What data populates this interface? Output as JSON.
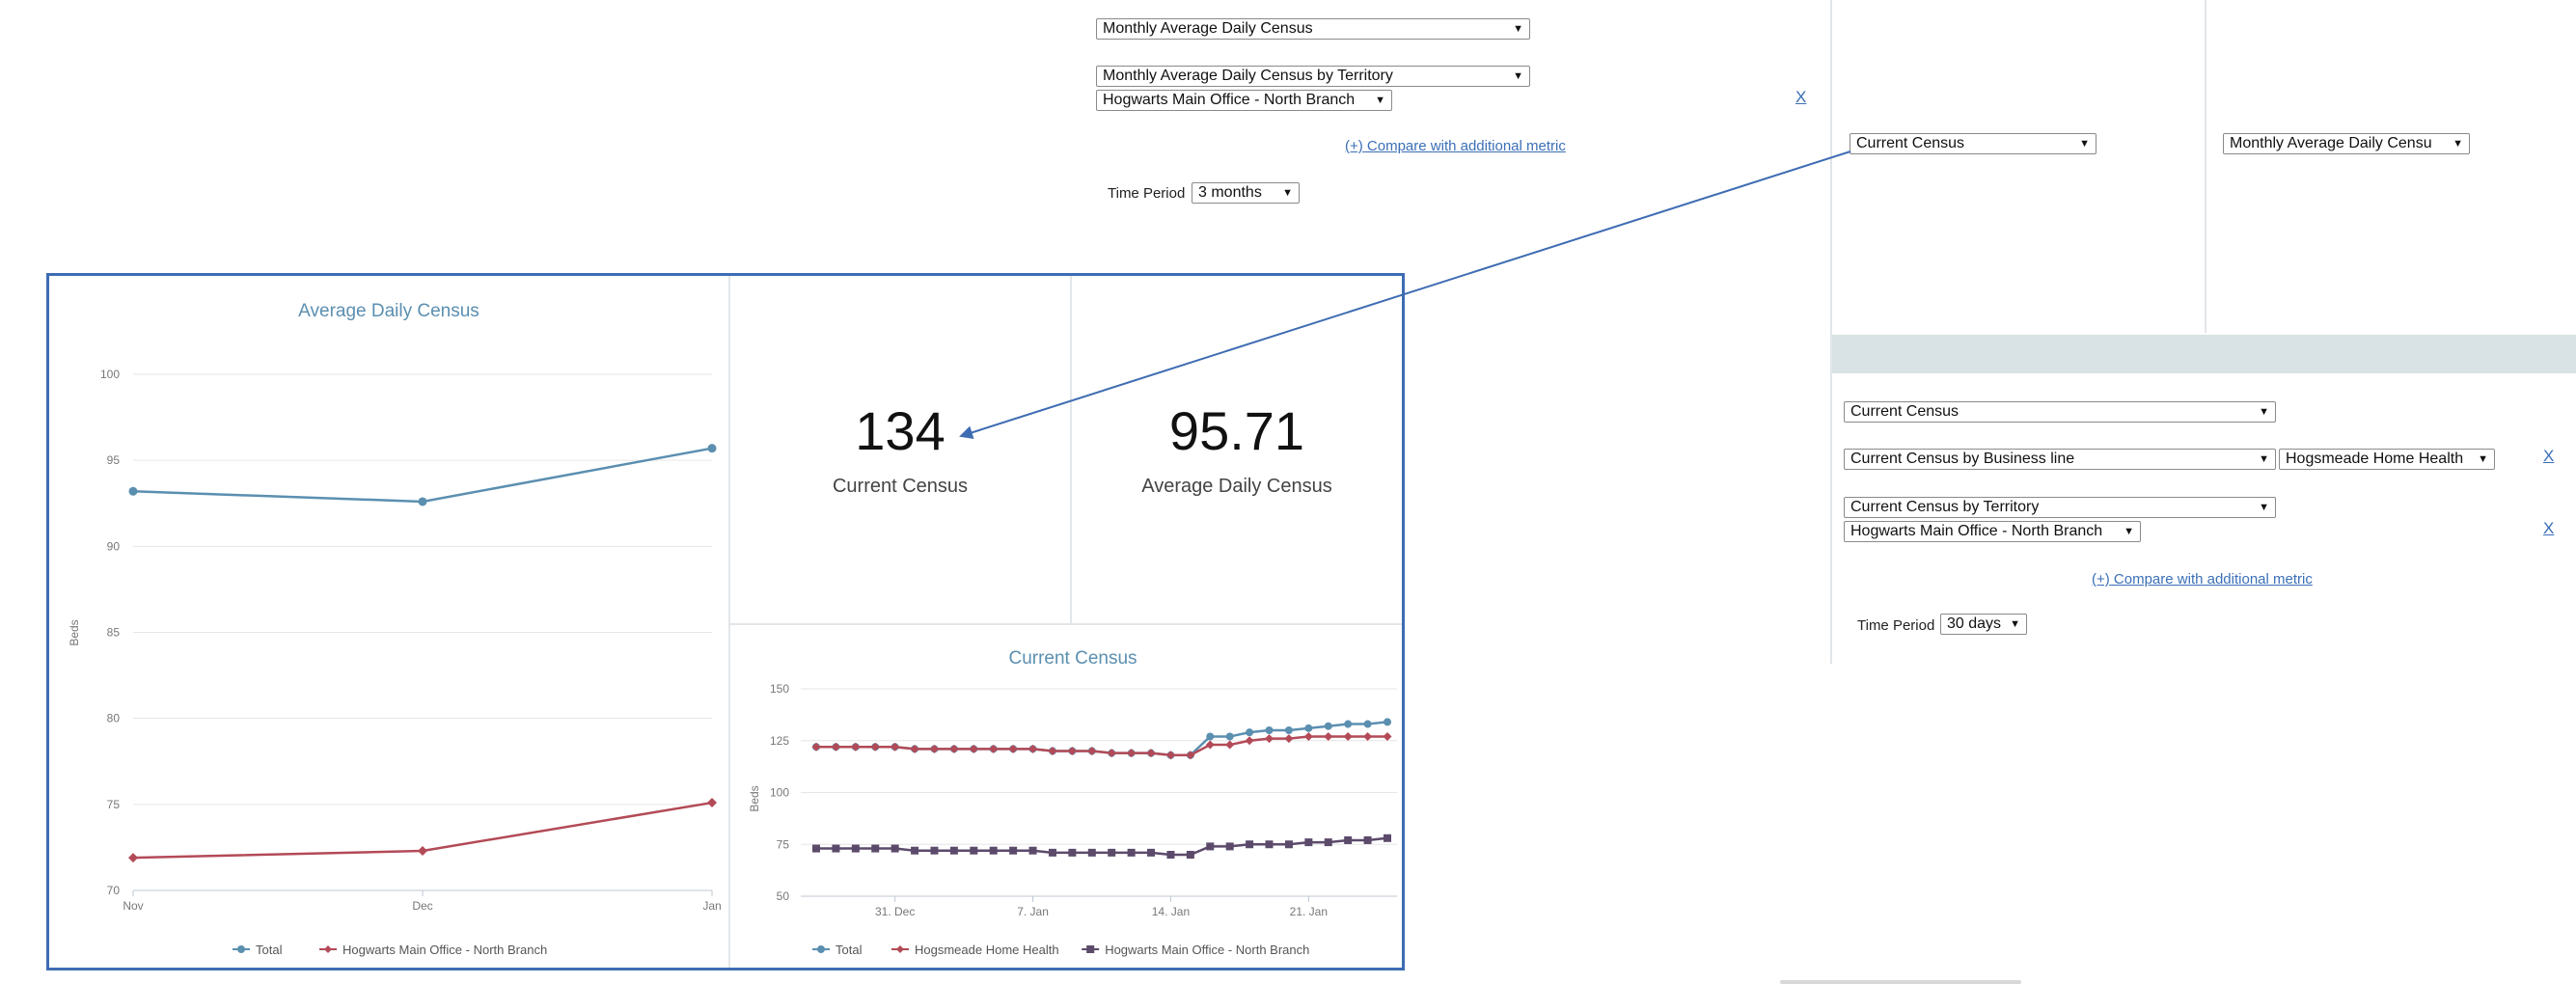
{
  "top_controls": {
    "metric_select": "Monthly Average Daily Census",
    "breakdown_select": "Monthly Average Daily Census by Territory",
    "territory_select": "Hogwarts Main Office - North Branch",
    "remove_label": "X",
    "compare_link": "(+) Compare with additional metric",
    "time_period_label": "Time Period",
    "time_period_value": "3 months"
  },
  "right_panel": {
    "tile_left_select": "Current Census",
    "tile_right_select": "Monthly Average Daily Censu",
    "metric_select": "Current Census",
    "business_line_select": "Current Census by Business line",
    "business_line_value": "Hogsmeade Home Health",
    "territory_breakdown_select": "Current Census by Territory",
    "territory_value": "Hogwarts Main Office - North Branch",
    "remove_label_1": "X",
    "remove_label_2": "X",
    "compare_link": "(+) Compare with additional metric",
    "time_period_label": "Time Period",
    "time_period_value": "30 days"
  },
  "kpis": {
    "current_census_value": "134",
    "current_census_label": "Current Census",
    "avg_daily_census_value": "95.71",
    "avg_daily_census_label": "Average Daily Census"
  },
  "colors": {
    "total": "#5b8fb0",
    "hogsmeade": "#b34a57",
    "hogwarts": "#5c4a6b",
    "annotation": "#3e6cb3"
  },
  "chart_data": [
    {
      "type": "line",
      "title": "Average Daily Census",
      "ylabel": "Beds",
      "xlabel": "",
      "categories": [
        "Nov",
        "Dec",
        "Jan"
      ],
      "ylim": [
        70,
        100
      ],
      "yticks": [
        70,
        75,
        80,
        85,
        90,
        95,
        100
      ],
      "grid": true,
      "legend": "bottom-center",
      "series": [
        {
          "name": "Total",
          "values": [
            93.2,
            92.6,
            95.7
          ]
        },
        {
          "name": "Hogwarts Main Office - North Branch",
          "values": [
            71.9,
            72.3,
            75.1
          ]
        }
      ]
    },
    {
      "type": "line",
      "title": "Current Census",
      "ylabel": "Beds",
      "xlabel": "",
      "x_range": [
        "Dec 27",
        "Jan 26"
      ],
      "xtick_labels": [
        "31. Dec",
        "7. Jan",
        "14. Jan",
        "21. Jan"
      ],
      "ylim": [
        50,
        150
      ],
      "yticks": [
        50,
        75,
        100,
        125,
        150
      ],
      "grid": true,
      "legend": "bottom-center",
      "series": [
        {
          "name": "Total",
          "values": [
            122,
            122,
            122,
            122,
            122,
            121,
            121,
            121,
            121,
            121,
            121,
            121,
            120,
            120,
            120,
            119,
            119,
            119,
            118,
            118,
            127,
            127,
            129,
            130,
            130,
            131,
            132,
            133,
            133,
            134
          ]
        },
        {
          "name": "Hogsmeade Home Health",
          "values": [
            122,
            122,
            122,
            122,
            122,
            121,
            121,
            121,
            121,
            121,
            121,
            121,
            120,
            120,
            120,
            119,
            119,
            119,
            118,
            118,
            123,
            123,
            125,
            126,
            126,
            127,
            127,
            127,
            127,
            127
          ]
        },
        {
          "name": "Hogwarts Main Office - North Branch",
          "values": [
            73,
            73,
            73,
            73,
            73,
            72,
            72,
            72,
            72,
            72,
            72,
            72,
            71,
            71,
            71,
            71,
            71,
            71,
            70,
            70,
            74,
            74,
            75,
            75,
            75,
            76,
            76,
            77,
            77,
            78
          ]
        }
      ]
    }
  ]
}
